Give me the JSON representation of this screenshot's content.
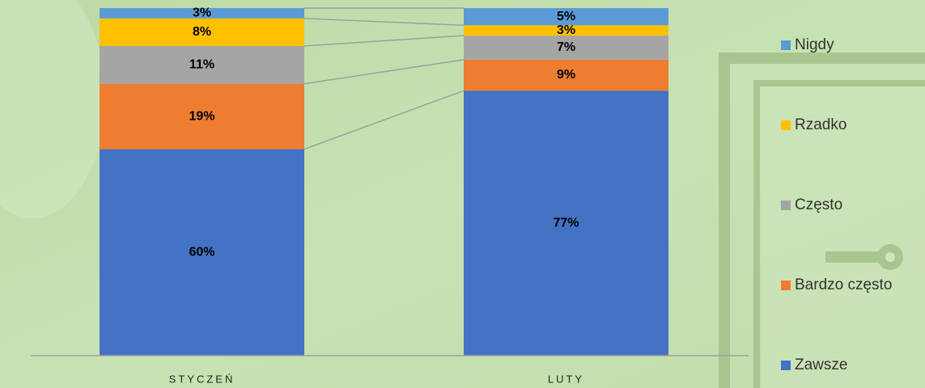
{
  "chart_data": {
    "type": "stacked_bar",
    "categories": [
      "STYCZEŃ",
      "LUTY"
    ],
    "series": [
      {
        "name": "Zawsze",
        "color": "#4472c4",
        "values": [
          60,
          77
        ],
        "value_labels": [
          "60%",
          "77%"
        ]
      },
      {
        "name": "Bardzo często",
        "color": "#ed7d31",
        "values": [
          19,
          9
        ],
        "value_labels": [
          "19%",
          "9%"
        ]
      },
      {
        "name": "Często",
        "color": "#a5a5a5",
        "values": [
          11,
          7
        ],
        "value_labels": [
          "11%",
          "7%"
        ]
      },
      {
        "name": "Rzadko",
        "color": "#ffc000",
        "values": [
          8,
          3
        ],
        "value_labels": [
          "8%",
          "3%"
        ]
      },
      {
        "name": "Nigdy",
        "color": "#5b9bd5",
        "values": [
          3,
          5
        ],
        "value_labels": [
          "3%",
          "5%"
        ]
      }
    ],
    "ylim": [
      0,
      101
    ],
    "legend": "right"
  }
}
